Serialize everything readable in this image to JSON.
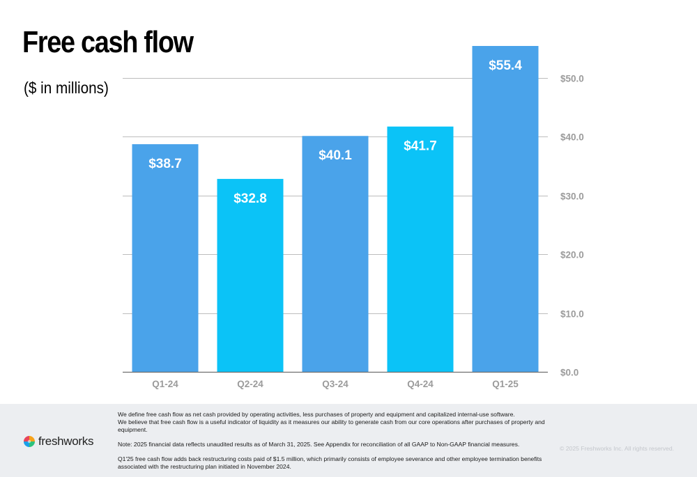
{
  "header": {
    "title": "Free cash flow",
    "subtitle": "($ in millions)"
  },
  "colors": {
    "bar_primary": "#4aa3ea",
    "bar_accent": "#0bc3f7",
    "grid": "#bcbcbc",
    "axis_text": "#9b9b9b",
    "footer_bg": "#eceef1"
  },
  "chart_data": {
    "type": "bar",
    "title": "",
    "xlabel": "",
    "ylabel": "",
    "categories": [
      "Q1-24",
      "Q2-24",
      "Q3-24",
      "Q4-24",
      "Q1-25"
    ],
    "values": [
      38.7,
      32.8,
      40.1,
      41.7,
      55.4
    ],
    "data_labels": [
      "$38.7",
      "$32.8",
      "$40.1",
      "$41.7",
      "$55.4"
    ],
    "bar_colors": [
      "#4aa3ea",
      "#0bc3f7",
      "#4aa3ea",
      "#0bc3f7",
      "#4aa3ea"
    ],
    "ylim": [
      0,
      55.4
    ],
    "yticks": [
      0,
      10,
      20,
      30,
      40,
      50
    ],
    "ytick_labels": [
      "$0.0",
      "$10.0",
      "$20.0",
      "$30.0",
      "$40.0",
      "$50.0"
    ],
    "y_axis_side": "right",
    "grid": true,
    "legend": false
  },
  "footer": {
    "notes": [
      "We define free cash flow as net cash provided by operating activities, less purchases of property and equipment and capitalized internal-use software.",
      "We believe that free cash flow is a useful indicator of liquidity as it measures our ability to generate cash from our core operations after purchases of property and equipment.",
      "Note: 2025 financial data reflects unaudited results as of March 31, 2025. See Appendix for reconciliation of all GAAP to Non-GAAP financial measures.",
      "Q1'25 free cash flow adds back restructuring costs paid of $1.5 million, which primarily consists of employee severance and other employee termination benefits associated with the restructuring plan initiated in November 2024."
    ],
    "brand_name": "freshworks",
    "brand_icon": "freshworks-logo-icon",
    "copyright": "© 2025 Freshworks Inc. All rights reserved."
  }
}
